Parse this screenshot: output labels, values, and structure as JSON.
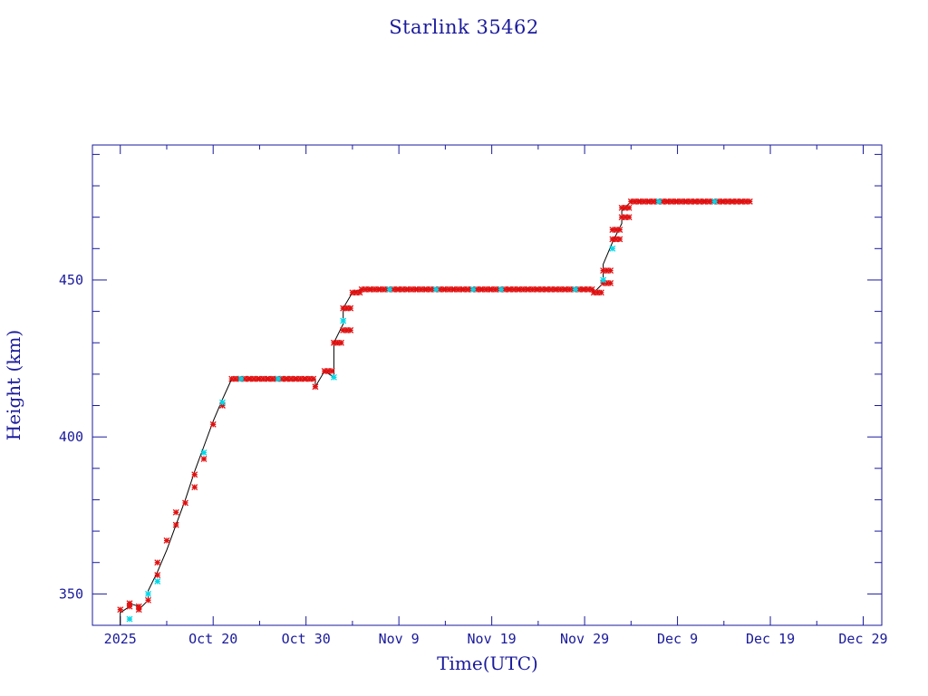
{
  "chart_data": {
    "type": "scatter",
    "title": "Starlink 35462",
    "xlabel": "Time(UTC)",
    "ylabel": "Height (km)",
    "x_tick_labels": [
      "2025",
      "Oct 20",
      "Oct 30",
      "Nov  9",
      "Nov 19",
      "Nov 29",
      "Dec  9",
      "Dec 19",
      "Dec 29"
    ],
    "x_tick_dates": [
      "2025-10-10",
      "2025-10-20",
      "2025-10-30",
      "2025-11-09",
      "2025-11-19",
      "2025-11-29",
      "2025-12-09",
      "2025-12-19",
      "2025-12-29"
    ],
    "xlim": [
      "2025-10-07",
      "2025-12-31"
    ],
    "y_tick_labels": [
      "350",
      "400",
      "450"
    ],
    "ylim": [
      340,
      493
    ],
    "grid": false,
    "colors": {
      "axis": "#1a1a9c",
      "line": "#000000",
      "primary_marker": "#e01010",
      "secondary_marker": "#00d8e8"
    },
    "line": [
      [
        "2025-10-10",
        340
      ],
      [
        "2025-10-10",
        344
      ],
      [
        "2025-10-11",
        346
      ],
      [
        "2025-10-11",
        347
      ],
      [
        "2025-10-12",
        346
      ],
      [
        "2025-10-12",
        345
      ],
      [
        "2025-10-13",
        348
      ],
      [
        "2025-10-13",
        351
      ],
      [
        "2025-10-14",
        357
      ],
      [
        "2025-10-15",
        364
      ],
      [
        "2025-10-16",
        372
      ],
      [
        "2025-10-17",
        380
      ],
      [
        "2025-10-18",
        389
      ],
      [
        "2025-10-19",
        397
      ],
      [
        "2025-10-20",
        405
      ],
      [
        "2025-10-21",
        412
      ],
      [
        "2025-10-22",
        418.5
      ],
      [
        "2025-10-31",
        418.5
      ],
      [
        "2025-10-31",
        416
      ],
      [
        "2025-11-01",
        421
      ],
      [
        "2025-11-02",
        419
      ],
      [
        "2025-11-02",
        430
      ],
      [
        "2025-11-03",
        436
      ],
      [
        "2025-11-03",
        441
      ],
      [
        "2025-11-04",
        446
      ],
      [
        "2025-11-05",
        447
      ],
      [
        "2025-11-30",
        447
      ],
      [
        "2025-11-30",
        446
      ],
      [
        "2025-12-01",
        449
      ],
      [
        "2025-12-01",
        455
      ],
      [
        "2025-12-02",
        462
      ],
      [
        "2025-12-03",
        468
      ],
      [
        "2025-12-03",
        472
      ],
      [
        "2025-12-04",
        475
      ],
      [
        "2025-12-16",
        475
      ]
    ],
    "series": [
      {
        "values": [
          [
            "2025-10-10",
            345
          ],
          [
            "2025-10-11",
            347
          ],
          [
            "2025-10-11",
            346
          ],
          [
            "2025-10-12",
            345
          ],
          [
            "2025-10-12",
            346
          ],
          [
            "2025-10-13",
            348
          ],
          [
            "2025-10-14",
            356
          ],
          [
            "2025-10-14",
            360
          ],
          [
            "2025-10-15",
            367
          ],
          [
            "2025-10-16",
            372
          ],
          [
            "2025-10-16",
            376
          ],
          [
            "2025-10-17",
            379
          ],
          [
            "2025-10-18",
            384
          ],
          [
            "2025-10-18",
            388
          ],
          [
            "2025-10-19",
            393
          ],
          [
            "2025-10-20",
            404
          ],
          [
            "2025-10-21",
            410
          ],
          [
            "2025-10-22",
            418.5
          ],
          [
            "2025-10-23",
            418.5
          ],
          [
            "2025-10-24",
            418.5
          ],
          [
            "2025-10-25",
            418.5
          ],
          [
            "2025-10-26",
            418.5
          ],
          [
            "2025-10-27",
            418.5
          ],
          [
            "2025-10-28",
            418.5
          ],
          [
            "2025-10-29",
            418.5
          ],
          [
            "2025-10-30",
            418.5
          ],
          [
            "2025-10-31",
            416
          ],
          [
            "2025-11-01",
            421
          ],
          [
            "2025-11-02",
            430
          ],
          [
            "2025-11-03",
            434
          ],
          [
            "2025-11-03",
            441
          ],
          [
            "2025-11-04",
            446
          ],
          [
            "2025-11-05",
            447
          ],
          [
            "2025-11-06",
            447
          ],
          [
            "2025-11-07",
            447
          ],
          [
            "2025-11-08",
            447
          ],
          [
            "2025-11-09",
            447
          ],
          [
            "2025-11-10",
            447
          ],
          [
            "2025-11-11",
            447
          ],
          [
            "2025-11-12",
            447
          ],
          [
            "2025-11-13",
            447
          ],
          [
            "2025-11-14",
            447
          ],
          [
            "2025-11-15",
            447
          ],
          [
            "2025-11-16",
            447
          ],
          [
            "2025-11-17",
            447
          ],
          [
            "2025-11-18",
            447
          ],
          [
            "2025-11-19",
            447
          ],
          [
            "2025-11-20",
            447
          ],
          [
            "2025-11-21",
            447
          ],
          [
            "2025-11-22",
            447
          ],
          [
            "2025-11-23",
            447
          ],
          [
            "2025-11-24",
            447
          ],
          [
            "2025-11-25",
            447
          ],
          [
            "2025-11-26",
            447
          ],
          [
            "2025-11-27",
            447
          ],
          [
            "2025-11-28",
            447
          ],
          [
            "2025-11-29",
            447
          ],
          [
            "2025-11-30",
            446
          ],
          [
            "2025-12-01",
            449
          ],
          [
            "2025-12-01",
            453
          ],
          [
            "2025-12-02",
            463
          ],
          [
            "2025-12-02",
            466
          ],
          [
            "2025-12-03",
            470
          ],
          [
            "2025-12-03",
            473
          ],
          [
            "2025-12-04",
            475
          ],
          [
            "2025-12-05",
            475
          ],
          [
            "2025-12-06",
            475
          ],
          [
            "2025-12-07",
            475
          ],
          [
            "2025-12-08",
            475
          ],
          [
            "2025-12-09",
            475
          ],
          [
            "2025-12-10",
            475
          ],
          [
            "2025-12-11",
            475
          ],
          [
            "2025-12-12",
            475
          ],
          [
            "2025-12-13",
            475
          ],
          [
            "2025-12-14",
            475
          ],
          [
            "2025-12-15",
            475
          ],
          [
            "2025-12-16",
            475
          ]
        ]
      },
      {
        "values": [
          [
            "2025-10-11",
            342
          ],
          [
            "2025-10-13",
            350
          ],
          [
            "2025-10-14",
            354
          ],
          [
            "2025-10-19",
            395
          ],
          [
            "2025-10-21",
            411
          ],
          [
            "2025-10-23",
            418.5
          ],
          [
            "2025-10-27",
            418.5
          ],
          [
            "2025-11-02",
            419
          ],
          [
            "2025-11-03",
            437
          ],
          [
            "2025-11-08",
            447
          ],
          [
            "2025-11-13",
            447
          ],
          [
            "2025-11-17",
            447
          ],
          [
            "2025-11-20",
            447
          ],
          [
            "2025-11-28",
            447
          ],
          [
            "2025-12-01",
            450
          ],
          [
            "2025-12-02",
            460
          ],
          [
            "2025-12-07",
            475
          ],
          [
            "2025-12-13",
            475
          ]
        ]
      }
    ]
  }
}
